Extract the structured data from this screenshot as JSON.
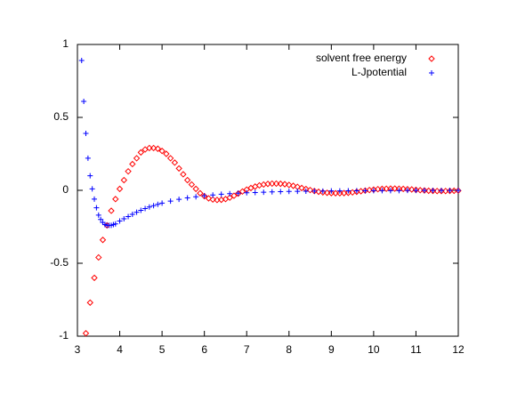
{
  "chart_data": {
    "type": "scatter",
    "xlim": [
      3,
      12
    ],
    "xticks": [
      3,
      4,
      5,
      6,
      7,
      8,
      9,
      10,
      11,
      12
    ],
    "ylim": [
      -1,
      1
    ],
    "yticks": [
      -1,
      -0.5,
      0,
      0.5,
      1
    ],
    "legend": "upper right",
    "series": [
      {
        "name": "solvent free energy",
        "color": "#ff0000",
        "marker": "diamond",
        "x": [
          3.2,
          3.3,
          3.4,
          3.5,
          3.6,
          3.7,
          3.8,
          3.9,
          4.0,
          4.1,
          4.2,
          4.3,
          4.4,
          4.5,
          4.6,
          4.7,
          4.8,
          4.9,
          5.0,
          5.1,
          5.2,
          5.3,
          5.4,
          5.5,
          5.6,
          5.7,
          5.8,
          5.9,
          6.0,
          6.1,
          6.2,
          6.3,
          6.4,
          6.5,
          6.6,
          6.7,
          6.8,
          6.9,
          7.0,
          7.1,
          7.2,
          7.3,
          7.4,
          7.5,
          7.6,
          7.7,
          7.8,
          7.9,
          8.0,
          8.1,
          8.2,
          8.3,
          8.4,
          8.5,
          8.6,
          8.7,
          8.8,
          8.9,
          9.0,
          9.1,
          9.2,
          9.3,
          9.4,
          9.5,
          9.6,
          9.7,
          9.8,
          9.9,
          10.0,
          10.1,
          10.2,
          10.3,
          10.4,
          10.5,
          10.6,
          10.7,
          10.8,
          10.9,
          11.0,
          11.1,
          11.2,
          11.3,
          11.4,
          11.5,
          11.6,
          11.7,
          11.8,
          11.9,
          12.0
        ],
        "values": [
          -0.98,
          -0.77,
          -0.6,
          -0.46,
          -0.34,
          -0.24,
          -0.14,
          -0.06,
          0.01,
          0.07,
          0.13,
          0.18,
          0.22,
          0.26,
          0.28,
          0.29,
          0.29,
          0.285,
          0.27,
          0.25,
          0.22,
          0.19,
          0.15,
          0.11,
          0.07,
          0.04,
          0.01,
          -0.02,
          -0.04,
          -0.055,
          -0.063,
          -0.066,
          -0.065,
          -0.06,
          -0.05,
          -0.037,
          -0.022,
          -0.008,
          0.005,
          0.016,
          0.026,
          0.034,
          0.04,
          0.044,
          0.046,
          0.046,
          0.045,
          0.042,
          0.037,
          0.031,
          0.024,
          0.016,
          0.009,
          0.002,
          -0.005,
          -0.01,
          -0.014,
          -0.017,
          -0.019,
          -0.02,
          -0.02,
          -0.019,
          -0.017,
          -0.014,
          -0.01,
          -0.006,
          -0.002,
          0.002,
          0.005,
          0.008,
          0.01,
          0.011,
          0.012,
          0.012,
          0.011,
          0.01,
          0.008,
          0.006,
          0.003,
          0.001,
          -0.001,
          -0.003,
          -0.004,
          -0.005,
          -0.005,
          -0.005,
          -0.004,
          -0.003,
          -0.002
        ]
      },
      {
        "name": "L-Jpotential",
        "color": "#0000ff",
        "marker": "plus",
        "x": [
          3.1,
          3.15,
          3.2,
          3.25,
          3.3,
          3.35,
          3.4,
          3.45,
          3.5,
          3.55,
          3.6,
          3.65,
          3.7,
          3.75,
          3.8,
          3.85,
          3.9,
          4.0,
          4.1,
          4.2,
          4.3,
          4.4,
          4.5,
          4.6,
          4.7,
          4.8,
          4.9,
          5.0,
          5.2,
          5.4,
          5.6,
          5.8,
          6.0,
          6.2,
          6.4,
          6.6,
          6.8,
          7.0,
          7.2,
          7.4,
          7.6,
          7.8,
          8.0,
          8.2,
          8.4,
          8.6,
          8.8,
          9.0,
          9.2,
          9.4,
          9.6,
          9.8,
          10.0,
          10.2,
          10.4,
          10.6,
          10.8,
          11.0,
          11.2,
          11.4,
          11.6,
          11.8,
          12.0
        ],
        "values": [
          0.89,
          0.61,
          0.39,
          0.22,
          0.1,
          0.01,
          -0.06,
          -0.12,
          -0.17,
          -0.2,
          -0.22,
          -0.235,
          -0.24,
          -0.24,
          -0.24,
          -0.235,
          -0.23,
          -0.21,
          -0.195,
          -0.18,
          -0.165,
          -0.15,
          -0.137,
          -0.125,
          -0.114,
          -0.105,
          -0.096,
          -0.088,
          -0.074,
          -0.062,
          -0.052,
          -0.044,
          -0.037,
          -0.032,
          -0.027,
          -0.023,
          -0.02,
          -0.017,
          -0.015,
          -0.013,
          -0.011,
          -0.009,
          -0.008,
          -0.007,
          -0.006,
          -0.005,
          -0.005,
          -0.004,
          -0.004,
          -0.003,
          -0.003,
          -0.003,
          -0.002,
          -0.002,
          -0.002,
          -0.002,
          -0.001,
          -0.001,
          -0.001,
          -0.001,
          -0.001,
          -0.001,
          -0.001
        ]
      }
    ]
  }
}
